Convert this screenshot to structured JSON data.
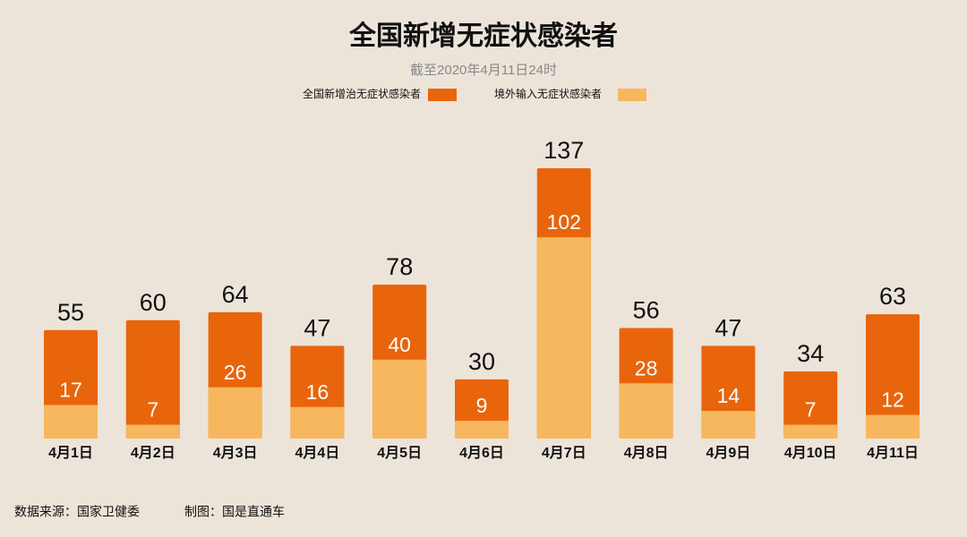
{
  "chart_data": {
    "type": "bar",
    "title": "全国新增无症状感染者",
    "subtitle": "截至2020年4月11日24时",
    "categories": [
      "4月1日",
      "4月2日",
      "4月3日",
      "4月4日",
      "4月5日",
      "4月6日",
      "4月7日",
      "4月8日",
      "4月9日",
      "4月10日",
      "4月11日"
    ],
    "series": [
      {
        "name": "全国新增治无症状感染者",
        "color": "#e8650c",
        "values": [
          55,
          60,
          64,
          47,
          78,
          30,
          137,
          56,
          47,
          34,
          63
        ]
      },
      {
        "name": "境外输入无症状感染者",
        "color": "#f7b75e",
        "values": [
          17,
          7,
          26,
          16,
          40,
          9,
          102,
          28,
          14,
          7,
          12
        ]
      }
    ],
    "source": "数据来源：国家卫健委",
    "credit": "制图：国是直通车"
  }
}
